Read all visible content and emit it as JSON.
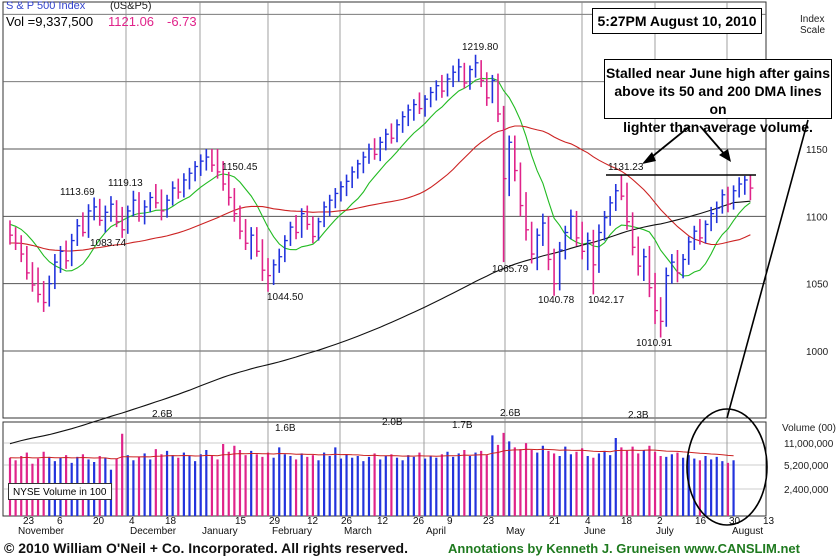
{
  "header": {
    "symbol_label": "S & P 500 Index",
    "symbol_code": "(0S&P5)",
    "volume_text": "Vol =9,337,500",
    "price_text": "1121.06",
    "change_text": "-6.73"
  },
  "timestamp_text": "5:27PM August 10, 2010",
  "annotation": {
    "lines": [
      "Stalled near June high after gains",
      "above its 50 and 200 DMA lines on",
      "lighter than average volume."
    ]
  },
  "scale_label": [
    "Index",
    "Scale"
  ],
  "volume_panel": {
    "title": "Volume (00)",
    "nyse_label": "NYSE Volume in 100",
    "ticks": [
      "11,000,000",
      "5,200,000",
      "2,400,000"
    ]
  },
  "footer": {
    "copyright": "© 2010 William O'Neil + Co. Incorporated. All rights reserved.",
    "annotations": "Annotations by Kenneth J. Gruneisen www.CANSLIM.net"
  },
  "colors": {
    "up_bar": "#2233dd",
    "down_bar": "#e0238a",
    "ma50": "#22bb22",
    "ma200": "#111111",
    "ma_red": "#cc2222",
    "grid": "#555555"
  },
  "chart_data": {
    "type": "bar",
    "title": "S & P 500 Index",
    "y_axis": {
      "ticks": [
        1000,
        1050,
        1100,
        1150
      ],
      "ylim": [
        960,
        1250
      ]
    },
    "x_axis": {
      "day_ticks": [
        "23",
        "6",
        "20",
        "4",
        "18",
        "15",
        "29",
        "12",
        "26",
        "12",
        "26",
        "9",
        "23",
        "21",
        "4",
        "18",
        "2",
        "16",
        "30",
        "13"
      ],
      "month_labels": [
        "November",
        "December",
        "January",
        "February",
        "March",
        "April",
        "May",
        "June",
        "July",
        "August"
      ]
    },
    "price_labels": [
      "1113.69",
      "1119.13",
      "1083.74",
      "1150.45",
      "1044.50",
      "1219.80",
      "1065.79",
      "1040.78",
      "1042.17",
      "1131.23",
      "1010.91"
    ],
    "ohlc": [
      [
        1092,
        1097,
        1079,
        1086
      ],
      [
        1086,
        1092,
        1075,
        1080
      ],
      [
        1080,
        1086,
        1066,
        1072
      ],
      [
        1072,
        1078,
        1053,
        1058
      ],
      [
        1058,
        1066,
        1044,
        1049
      ],
      [
        1049,
        1062,
        1036,
        1042
      ],
      [
        1042,
        1052,
        1029,
        1036
      ],
      [
        1036,
        1056,
        1033,
        1050
      ],
      [
        1050,
        1072,
        1046,
        1066
      ],
      [
        1066,
        1078,
        1058,
        1074
      ],
      [
        1074,
        1082,
        1061,
        1067
      ],
      [
        1067,
        1087,
        1063,
        1082
      ],
      [
        1082,
        1098,
        1078,
        1093
      ],
      [
        1093,
        1103,
        1085,
        1088
      ],
      [
        1088,
        1109,
        1084,
        1104
      ],
      [
        1104,
        1114,
        1097,
        1107
      ],
      [
        1107,
        1113,
        1093,
        1097
      ],
      [
        1097,
        1108,
        1088,
        1103
      ],
      [
        1103,
        1115,
        1096,
        1109
      ],
      [
        1109,
        1112,
        1092,
        1096
      ],
      [
        1096,
        1107,
        1084,
        1090
      ],
      [
        1090,
        1108,
        1087,
        1104
      ],
      [
        1104,
        1119,
        1100,
        1112
      ],
      [
        1112,
        1118,
        1096,
        1100
      ],
      [
        1100,
        1112,
        1094,
        1107
      ],
      [
        1107,
        1118,
        1103,
        1114
      ],
      [
        1114,
        1124,
        1106,
        1110
      ],
      [
        1110,
        1120,
        1097,
        1104
      ],
      [
        1104,
        1116,
        1099,
        1112
      ],
      [
        1112,
        1126,
        1108,
        1121
      ],
      [
        1121,
        1128,
        1113,
        1118
      ],
      [
        1118,
        1132,
        1114,
        1127
      ],
      [
        1127,
        1136,
        1120,
        1132
      ],
      [
        1132,
        1141,
        1126,
        1137
      ],
      [
        1137,
        1146,
        1130,
        1141
      ],
      [
        1141,
        1150,
        1134,
        1144
      ],
      [
        1144,
        1150,
        1133,
        1138
      ],
      [
        1138,
        1150,
        1128,
        1133
      ],
      [
        1133,
        1141,
        1119,
        1124
      ],
      [
        1124,
        1133,
        1108,
        1114
      ],
      [
        1114,
        1121,
        1096,
        1102
      ],
      [
        1102,
        1108,
        1083,
        1089
      ],
      [
        1089,
        1098,
        1075,
        1080
      ],
      [
        1080,
        1092,
        1068,
        1086
      ],
      [
        1086,
        1092,
        1070,
        1074
      ],
      [
        1074,
        1083,
        1052,
        1060
      ],
      [
        1060,
        1069,
        1044,
        1056
      ],
      [
        1056,
        1068,
        1049,
        1064
      ],
      [
        1064,
        1076,
        1058,
        1070
      ],
      [
        1070,
        1086,
        1066,
        1082
      ],
      [
        1082,
        1096,
        1078,
        1092
      ],
      [
        1092,
        1101,
        1083,
        1088
      ],
      [
        1088,
        1106,
        1084,
        1102
      ],
      [
        1102,
        1108,
        1090,
        1094
      ],
      [
        1094,
        1100,
        1080,
        1085
      ],
      [
        1085,
        1099,
        1082,
        1096
      ],
      [
        1096,
        1111,
        1092,
        1107
      ],
      [
        1107,
        1116,
        1100,
        1112
      ],
      [
        1112,
        1121,
        1106,
        1117
      ],
      [
        1117,
        1126,
        1111,
        1122
      ],
      [
        1122,
        1131,
        1115,
        1126
      ],
      [
        1126,
        1137,
        1121,
        1133
      ],
      [
        1133,
        1142,
        1128,
        1139
      ],
      [
        1139,
        1148,
        1132,
        1144
      ],
      [
        1144,
        1154,
        1139,
        1150
      ],
      [
        1150,
        1158,
        1142,
        1146
      ],
      [
        1146,
        1159,
        1141,
        1155
      ],
      [
        1155,
        1165,
        1149,
        1161
      ],
      [
        1161,
        1169,
        1154,
        1158
      ],
      [
        1158,
        1172,
        1155,
        1168
      ],
      [
        1168,
        1178,
        1162,
        1174
      ],
      [
        1174,
        1183,
        1167,
        1179
      ],
      [
        1179,
        1187,
        1171,
        1183
      ],
      [
        1183,
        1192,
        1176,
        1180
      ],
      [
        1180,
        1190,
        1174,
        1187
      ],
      [
        1187,
        1196,
        1181,
        1192
      ],
      [
        1192,
        1201,
        1186,
        1197
      ],
      [
        1197,
        1205,
        1188,
        1193
      ],
      [
        1193,
        1206,
        1189,
        1202
      ],
      [
        1202,
        1212,
        1196,
        1207
      ],
      [
        1207,
        1217,
        1200,
        1211
      ],
      [
        1211,
        1214,
        1195,
        1199
      ],
      [
        1199,
        1212,
        1194,
        1209
      ],
      [
        1209,
        1220,
        1203,
        1214
      ],
      [
        1214,
        1216,
        1196,
        1201
      ],
      [
        1201,
        1207,
        1182,
        1188
      ],
      [
        1188,
        1205,
        1184,
        1201
      ],
      [
        1201,
        1206,
        1170,
        1176
      ],
      [
        1176,
        1182,
        1066,
        1128
      ],
      [
        1128,
        1160,
        1115,
        1155
      ],
      [
        1155,
        1160,
        1126,
        1134
      ],
      [
        1134,
        1140,
        1100,
        1108
      ],
      [
        1108,
        1118,
        1082,
        1090
      ],
      [
        1090,
        1096,
        1065,
        1072
      ],
      [
        1072,
        1091,
        1060,
        1086
      ],
      [
        1086,
        1102,
        1078,
        1095
      ],
      [
        1095,
        1100,
        1060,
        1068
      ],
      [
        1068,
        1076,
        1041,
        1050
      ],
      [
        1050,
        1081,
        1045,
        1075
      ],
      [
        1075,
        1093,
        1068,
        1088
      ],
      [
        1088,
        1105,
        1083,
        1100
      ],
      [
        1100,
        1104,
        1078,
        1084
      ],
      [
        1084,
        1096,
        1068,
        1074
      ],
      [
        1074,
        1088,
        1060,
        1082
      ],
      [
        1082,
        1090,
        1042,
        1064
      ],
      [
        1064,
        1094,
        1058,
        1088
      ],
      [
        1088,
        1104,
        1082,
        1099
      ],
      [
        1099,
        1115,
        1093,
        1110
      ],
      [
        1110,
        1124,
        1104,
        1119
      ],
      [
        1119,
        1131,
        1112,
        1115
      ],
      [
        1115,
        1125,
        1090,
        1096
      ],
      [
        1096,
        1103,
        1071,
        1077
      ],
      [
        1077,
        1085,
        1056,
        1063
      ],
      [
        1063,
        1076,
        1052,
        1070
      ],
      [
        1070,
        1078,
        1040,
        1047
      ],
      [
        1047,
        1058,
        1020,
        1030
      ],
      [
        1030,
        1040,
        1010,
        1022
      ],
      [
        1022,
        1062,
        1018,
        1056
      ],
      [
        1056,
        1072,
        1050,
        1066
      ],
      [
        1066,
        1075,
        1051,
        1058
      ],
      [
        1058,
        1072,
        1054,
        1068
      ],
      [
        1068,
        1085,
        1064,
        1081
      ],
      [
        1081,
        1093,
        1075,
        1089
      ],
      [
        1089,
        1098,
        1079,
        1084
      ],
      [
        1084,
        1097,
        1080,
        1094
      ],
      [
        1094,
        1107,
        1089,
        1102
      ],
      [
        1102,
        1111,
        1095,
        1106
      ],
      [
        1106,
        1120,
        1102,
        1116
      ],
      [
        1116,
        1122,
        1103,
        1109
      ],
      [
        1109,
        1123,
        1105,
        1119
      ],
      [
        1119,
        1129,
        1114,
        1124
      ],
      [
        1124,
        1130,
        1116,
        1127
      ],
      [
        1127,
        1131,
        1112,
        1121
      ]
    ],
    "volume": [
      6.8,
      6.5,
      7.0,
      7.4,
      6.1,
      6.7,
      7.5,
      6.9,
      6.4,
      6.8,
      7.1,
      6.2,
      6.9,
      7.2,
      6.6,
      6.3,
      7.0,
      6.8,
      5.4,
      6.7,
      9.6,
      7.1,
      6.5,
      6.9,
      7.3,
      6.6,
      7.8,
      7.2,
      7.6,
      7.1,
      6.8,
      7.4,
      7.0,
      6.4,
      7.2,
      7.7,
      7.0,
      6.6,
      8.4,
      7.5,
      8.2,
      7.7,
      7.1,
      7.6,
      7.2,
      6.9,
      7.4,
      6.8,
      8.0,
      7.2,
      7.0,
      6.6,
      7.3,
      6.9,
      7.1,
      6.5,
      7.4,
      7.0,
      8.0,
      6.7,
      7.2,
      6.8,
      7.0,
      6.4,
      6.9,
      7.3,
      6.6,
      7.0,
      7.2,
      6.8,
      6.5,
      7.1,
      6.9,
      7.4,
      6.7,
      7.0,
      6.8,
      7.2,
      7.5,
      6.9,
      7.3,
      7.7,
      7.0,
      7.4,
      7.6,
      7.1,
      9.4,
      8.3,
      9.7,
      8.7,
      8.0,
      7.8,
      8.5,
      7.7,
      7.4,
      8.2,
      7.6,
      7.3,
      7.0,
      8.1,
      7.2,
      7.5,
      7.9,
      7.0,
      6.8,
      7.3,
      7.6,
      7.1,
      9.1,
      8.0,
      7.6,
      8.1,
      7.3,
      7.7,
      8.2,
      7.5,
      7.0,
      6.9,
      7.2,
      7.4,
      6.8,
      7.1,
      6.7,
      6.5,
      7.0,
      6.6,
      6.9,
      6.4,
      6.2,
      6.5
    ],
    "volume_labels": [
      "2.6B",
      "1.6B",
      "2.0B",
      "1.7B",
      "2.6B",
      "2.3B"
    ]
  }
}
